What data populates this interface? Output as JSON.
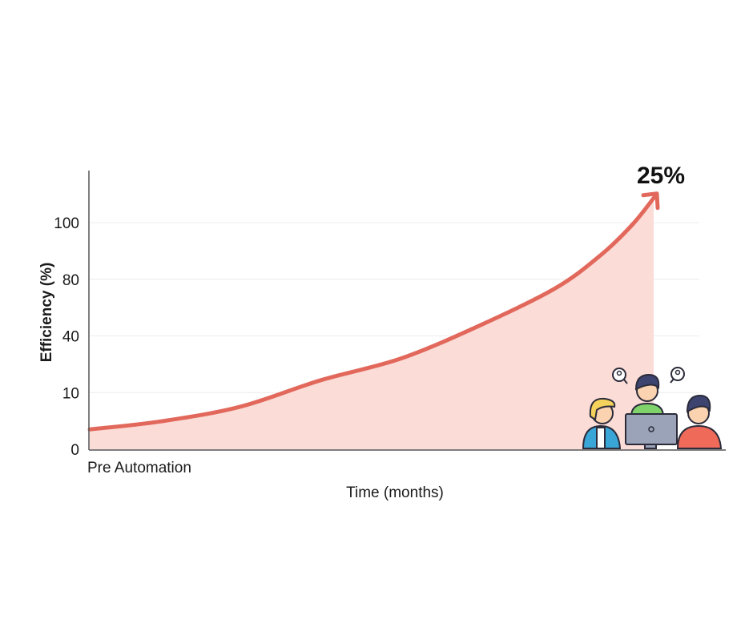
{
  "chart_data": {
    "type": "area",
    "title": "",
    "xlabel": "Time (months)",
    "ylabel": "Efficiency (%)",
    "x_tick_labels": [
      "Pre Automation"
    ],
    "y_ticks": [
      0,
      10,
      40,
      80,
      100
    ],
    "y_tick_labels": [
      "0",
      "10",
      "40",
      "80",
      "100"
    ],
    "y_scale": "categorical-evenly-spaced-ticks",
    "grid": "horizontal",
    "legend": "none",
    "annotation": "25%",
    "series": [
      {
        "x": [
          0,
          1.25,
          2.66,
          4.08,
          5.5,
          6.91,
          8.23,
          9.04,
          9.6,
          10
        ],
        "values": [
          3.5,
          4.9,
          7.5,
          16.5,
          28,
          47.6,
          73.6,
          88.6,
          99.4,
          109.4
        ]
      }
    ],
    "colors": {
      "line": "#e2685c",
      "fill": "#fbdcd7",
      "grid": "#ececec",
      "axis": "#555555"
    },
    "illustration": "team-of-three-at-computer"
  }
}
